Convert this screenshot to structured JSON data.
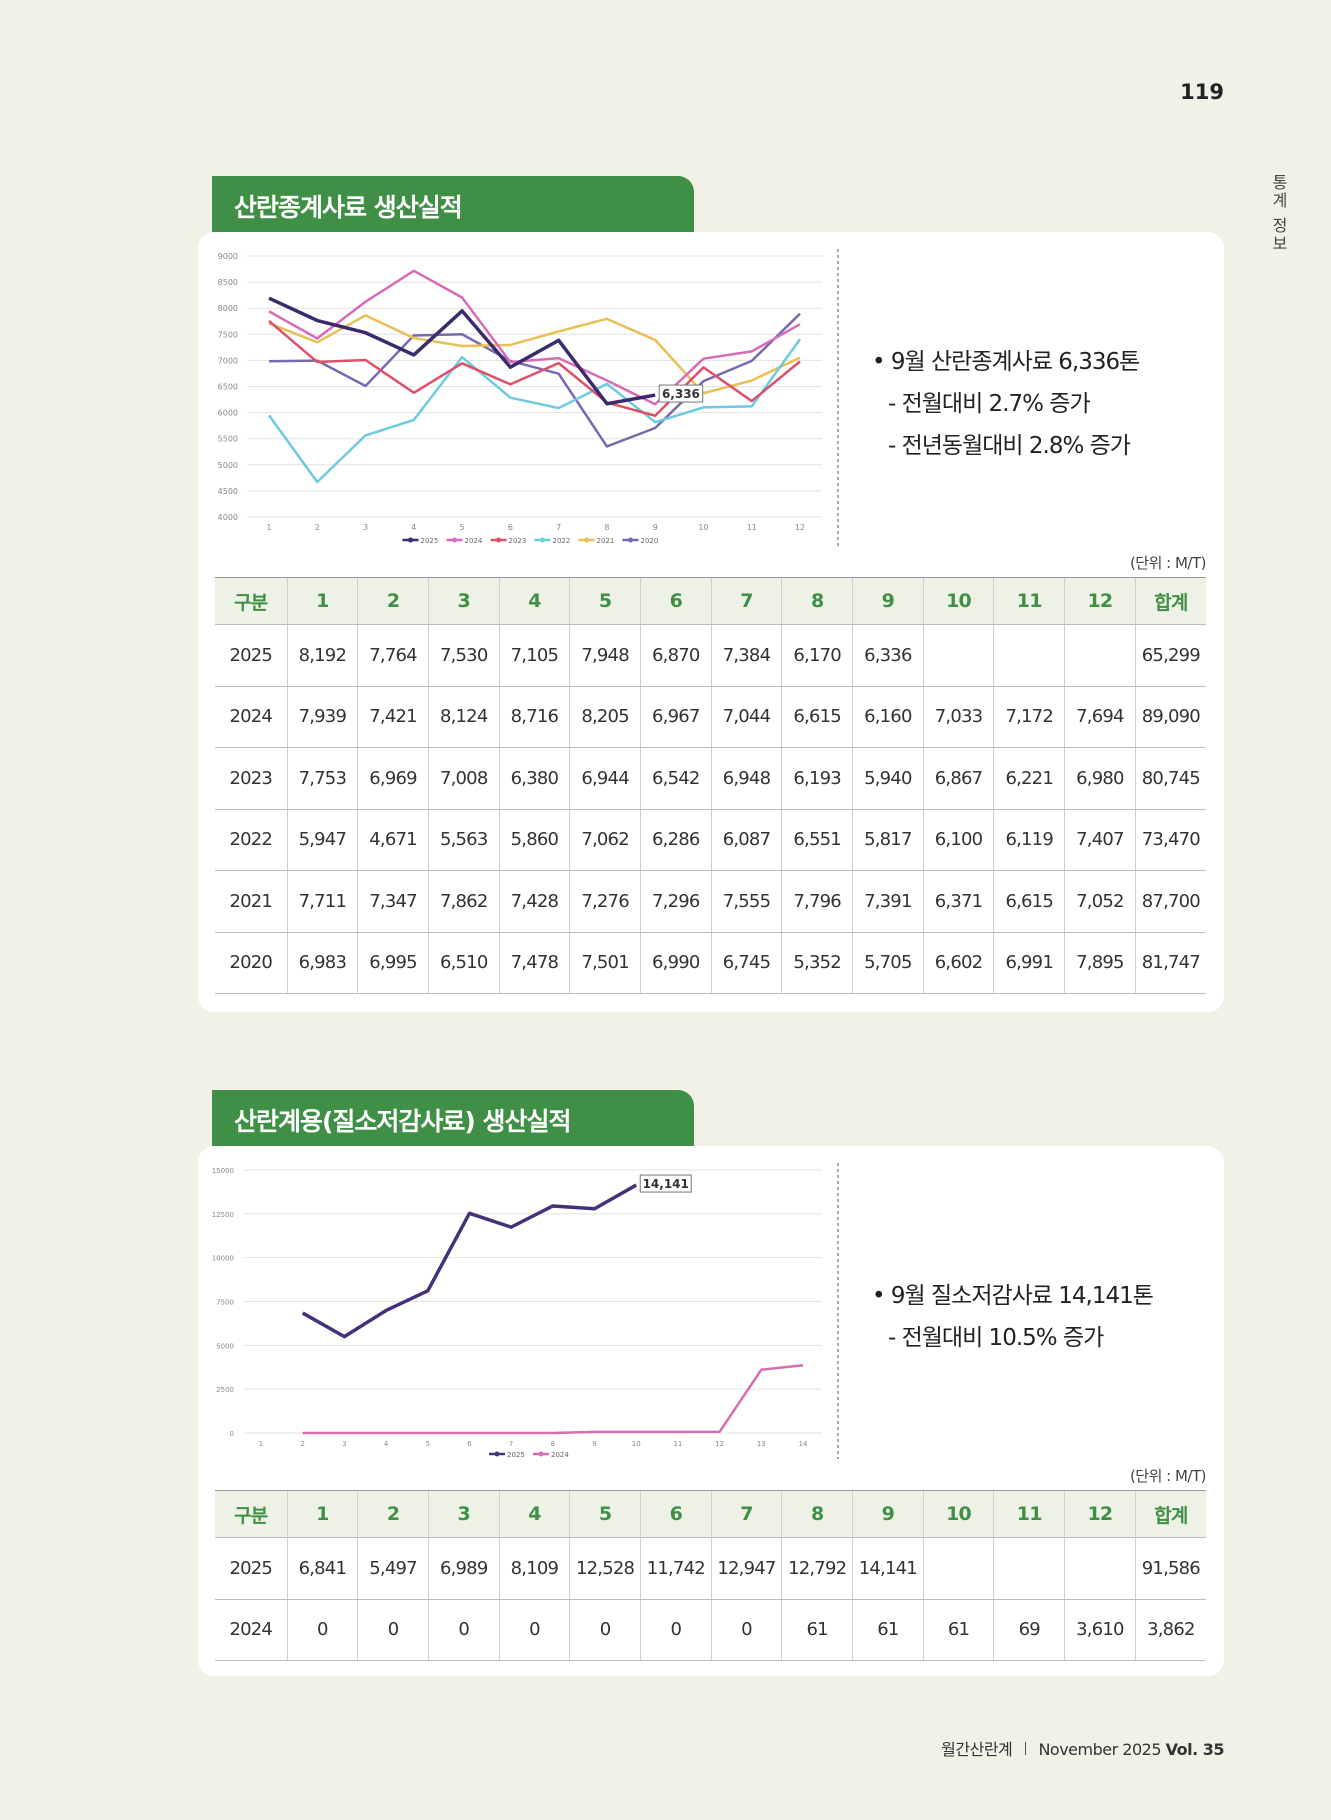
{
  "page_number": "119",
  "side_label": "통계 정보",
  "footer": {
    "magazine": "월간산란계",
    "issue": "November 2025",
    "volume": "Vol. 35"
  },
  "sections": [
    {
      "title": "산란종계사료 생산실적",
      "bullets": [
        "9월 산란종계사료 6,336톤",
        "- 전월대비 2.7% 증가",
        "- 전년동월대비 2.8% 증가"
      ],
      "unit": "(단위 : M/T)",
      "table": {
        "header": [
          "구분",
          "1",
          "2",
          "3",
          "4",
          "5",
          "6",
          "7",
          "8",
          "9",
          "10",
          "11",
          "12",
          "합계"
        ],
        "rows": [
          [
            "2025",
            "8,192",
            "7,764",
            "7,530",
            "7,105",
            "7,948",
            "6,870",
            "7,384",
            "6,170",
            "6,336",
            null,
            null,
            null,
            "65,299"
          ],
          [
            "2024",
            "7,939",
            "7,421",
            "8,124",
            "8,716",
            "8,205",
            "6,967",
            "7,044",
            "6,615",
            "6,160",
            "7,033",
            "7,172",
            "7,694",
            "89,090"
          ],
          [
            "2023",
            "7,753",
            "6,969",
            "7,008",
            "6,380",
            "6,944",
            "6,542",
            "6,948",
            "6,193",
            "5,940",
            "6,867",
            "6,221",
            "6,980",
            "80,745"
          ],
          [
            "2022",
            "5,947",
            "4,671",
            "5,563",
            "5,860",
            "7,062",
            "6,286",
            "6,087",
            "6,551",
            "5,817",
            "6,100",
            "6,119",
            "7,407",
            "73,470"
          ],
          [
            "2021",
            "7,711",
            "7,347",
            "7,862",
            "7,428",
            "7,276",
            "7,296",
            "7,555",
            "7,796",
            "7,391",
            "6,371",
            "6,615",
            "7,052",
            "87,700"
          ],
          [
            "2020",
            "6,983",
            "6,995",
            "6,510",
            "7,478",
            "7,501",
            "6,990",
            "6,745",
            "5,352",
            "5,705",
            "6,602",
            "6,991",
            "7,895",
            "81,747"
          ]
        ]
      }
    },
    {
      "title": "산란계용(질소저감사료) 생산실적",
      "bullets": [
        "9월 질소저감사료 14,141톤",
        "- 전월대비 10.5% 증가"
      ],
      "unit": "(단위 : M/T)",
      "table": {
        "header": [
          "구분",
          "1",
          "2",
          "3",
          "4",
          "5",
          "6",
          "7",
          "8",
          "9",
          "10",
          "11",
          "12",
          "합계"
        ],
        "rows": [
          [
            "2025",
            "6,841",
            "5,497",
            "6,989",
            "8,109",
            "12,528",
            "11,742",
            "12,947",
            "12,792",
            "14,141",
            null,
            null,
            null,
            "91,586"
          ],
          [
            "2024",
            "0",
            "0",
            "0",
            "0",
            "0",
            "0",
            "0",
            "61",
            "61",
            "61",
            "69",
            "3,610",
            "3,862"
          ]
        ]
      }
    }
  ],
  "chart_data": [
    {
      "type": "line",
      "categories": [
        "1",
        "2",
        "3",
        "4",
        "5",
        "6",
        "7",
        "8",
        "9",
        "10",
        "11",
        "12"
      ],
      "ylim": [
        4000,
        9000
      ],
      "yticks": [
        4000,
        4500,
        5000,
        5500,
        6000,
        6500,
        7000,
        7500,
        8000,
        8500,
        9000
      ],
      "grid": true,
      "legend": "bottom",
      "series": [
        {
          "name": "2025",
          "color": "#3b2b6e",
          "values": [
            8192,
            7764,
            7530,
            7105,
            7948,
            6870,
            7384,
            6170,
            6336,
            null,
            null,
            null
          ],
          "value_labels": [
            null,
            null,
            null,
            null,
            null,
            null,
            null,
            null,
            "6,336",
            null,
            null,
            null
          ]
        },
        {
          "name": "2024",
          "color": "#d86bb5",
          "values": [
            7939,
            7421,
            8124,
            8716,
            8205,
            6967,
            7044,
            6615,
            6160,
            7033,
            7172,
            7694
          ]
        },
        {
          "name": "2023",
          "color": "#de4f68",
          "values": [
            7753,
            6969,
            7008,
            6380,
            6944,
            6542,
            6948,
            6193,
            5940,
            6867,
            6221,
            6980
          ]
        },
        {
          "name": "2022",
          "color": "#6ccbe2",
          "values": [
            5947,
            4671,
            5563,
            5860,
            7062,
            6286,
            6087,
            6551,
            5817,
            6100,
            6119,
            7407
          ]
        },
        {
          "name": "2021",
          "color": "#e9c054",
          "values": [
            7711,
            7347,
            7862,
            7428,
            7276,
            7296,
            7555,
            7796,
            7391,
            6371,
            6615,
            7052
          ]
        },
        {
          "name": "2020",
          "color": "#7a68b2",
          "values": [
            6983,
            6995,
            6510,
            7478,
            7501,
            6990,
            6745,
            5352,
            5705,
            6602,
            6991,
            7895
          ]
        }
      ]
    },
    {
      "type": "line",
      "categories": [
        "1",
        "2",
        "3",
        "4",
        "5",
        "6",
        "7",
        "8",
        "9",
        "10",
        "11",
        "12",
        "13",
        "14"
      ],
      "ylim": [
        0,
        15000
      ],
      "yticks": [
        0,
        2500,
        5000,
        7500,
        10000,
        12500,
        15000
      ],
      "grid": true,
      "legend": "bottom",
      "series": [
        {
          "name": "2025",
          "color": "#45317a",
          "values": [
            null,
            6841,
            5497,
            6989,
            8109,
            12528,
            11742,
            12947,
            12792,
            14141,
            null,
            null,
            null,
            null
          ],
          "value_labels": [
            null,
            null,
            null,
            null,
            null,
            null,
            null,
            null,
            null,
            "14,141",
            null,
            null,
            null,
            null
          ]
        },
        {
          "name": "2024",
          "color": "#d86bb5",
          "values": [
            null,
            0,
            0,
            0,
            0,
            0,
            0,
            0,
            61,
            61,
            61,
            69,
            3610,
            3862
          ]
        }
      ]
    }
  ]
}
